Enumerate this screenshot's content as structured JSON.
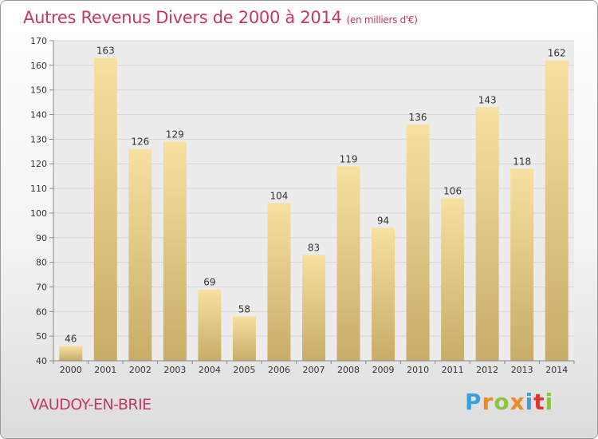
{
  "header": {
    "title": "Autres Revenus Divers de 2000 à 2014",
    "unit": "(en milliers d'€)"
  },
  "footer": {
    "city": "VAUDOY-EN-BRIE",
    "logo_letters": [
      "P",
      "r",
      "o",
      "x",
      "i",
      "t",
      "i"
    ],
    "logo_colors": [
      "#3aa0dc",
      "#f08a1c",
      "#8bc53f",
      "#f08a1c",
      "#3aa0dc",
      "#e2342d",
      "#8bc53f"
    ]
  },
  "colors": {
    "title": "#c8385c",
    "bar_light": "#f7e0a0",
    "bar_dark": "#c8ac68",
    "grid": "#d4d4d4",
    "plot_bg": "#ececec"
  },
  "chart_data": {
    "type": "bar",
    "title": "Autres Revenus Divers de 2000 à 2014",
    "subtitle": "(en milliers d'€)",
    "categories": [
      "2000",
      "2001",
      "2002",
      "2003",
      "2004",
      "2005",
      "2006",
      "2007",
      "2008",
      "2009",
      "2010",
      "2011",
      "2012",
      "2013",
      "2014"
    ],
    "values": [
      46,
      163,
      126,
      129,
      69,
      58,
      104,
      83,
      119,
      94,
      136,
      106,
      143,
      118,
      162
    ],
    "ylim": [
      40,
      170
    ],
    "yticks": [
      40,
      50,
      60,
      70,
      80,
      90,
      100,
      110,
      120,
      130,
      140,
      150,
      160,
      170
    ],
    "grid": true,
    "xlabel": "",
    "ylabel": ""
  }
}
